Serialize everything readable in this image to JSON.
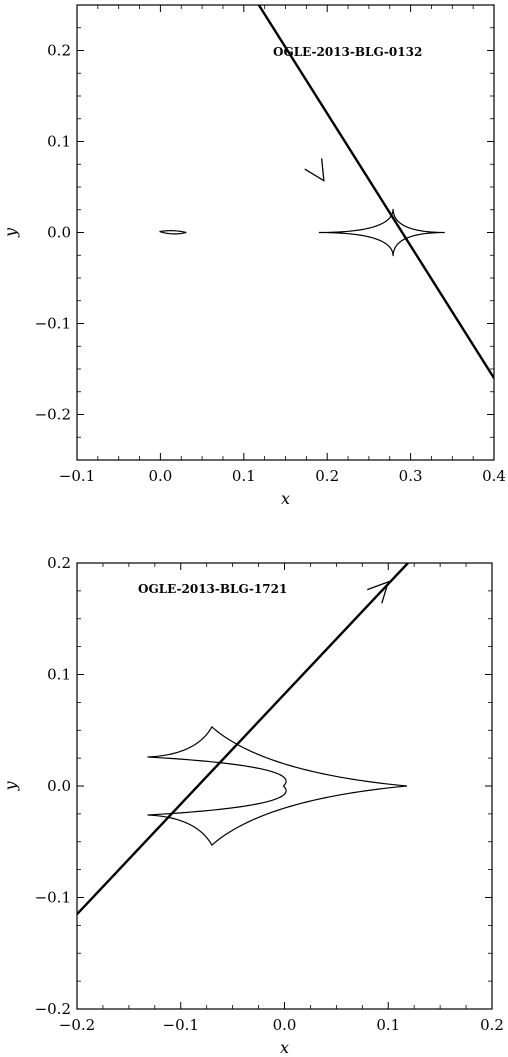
{
  "colors": {
    "line": "#000000",
    "background": "#ffffff"
  },
  "chart_data": [
    {
      "type": "line",
      "title": "",
      "annotation": "OGLE-2013-BLG-0132",
      "xlabel": "x",
      "ylabel": "y",
      "xlim": [
        -0.1,
        0.4
      ],
      "ylim": [
        -0.25,
        0.25
      ],
      "xticks": [
        -0.1,
        0.0,
        0.1,
        0.2,
        0.3,
        0.4
      ],
      "xtick_labels": [
        "−0.1",
        "0.0",
        "0.1",
        "0.2",
        "0.3",
        "0.4"
      ],
      "yticks": [
        -0.2,
        -0.1,
        0.0,
        0.1,
        0.2
      ],
      "ytick_labels": [
        "−0.2",
        "−0.1",
        "0.0",
        "0.1",
        "0.2"
      ],
      "grid": false,
      "trajectory": {
        "points": [
          [
            0.118,
            0.25
          ],
          [
            0.4,
            -0.16
          ]
        ],
        "arrow_at": [
          0.196,
          0.057
        ]
      },
      "caustics": [
        {
          "kind": "astroid",
          "center": [
            0.279,
            0.0
          ],
          "cusps_x": [
            0.19,
            0.341
          ],
          "cusps_y": [
            -0.026,
            0.026
          ]
        },
        {
          "kind": "wedge",
          "tip": [
            -0.001,
            0.001
          ],
          "end": [
            0.031,
            0.0
          ],
          "halfwidth": 0.0035
        }
      ]
    },
    {
      "type": "line",
      "title": "",
      "annotation": "OGLE-2013-BLG-1721",
      "xlabel": "x",
      "ylabel": "y",
      "xlim": [
        -0.2,
        0.2
      ],
      "ylim": [
        -0.2,
        0.2
      ],
      "xticks": [
        -0.2,
        -0.1,
        0.0,
        0.1,
        0.2
      ],
      "xtick_labels": [
        "−0.2",
        "−0.1",
        "0.0",
        "0.1",
        "0.2"
      ],
      "yticks": [
        -0.2,
        -0.1,
        0.0,
        0.1,
        0.2
      ],
      "ytick_labels": [
        "−0.2",
        "−0.1",
        "0.0",
        "0.1",
        "0.2"
      ],
      "grid": false,
      "trajectory": {
        "points": [
          [
            -0.2,
            -0.115
          ],
          [
            0.119,
            0.2
          ]
        ],
        "arrow_at": [
          0.1,
          0.183
        ]
      },
      "caustics": [
        {
          "kind": "resonant",
          "right_cusp": [
            0.118,
            0.0
          ],
          "top_cusp": [
            -0.07,
            0.053
          ],
          "bottom_cusp": [
            -0.07,
            -0.053
          ],
          "upper_left_cusp": [
            -0.132,
            0.026
          ],
          "lower_left_cusp": [
            -0.132,
            -0.026
          ],
          "inner_tip": [
            -0.001,
            0.0
          ]
        }
      ]
    }
  ]
}
